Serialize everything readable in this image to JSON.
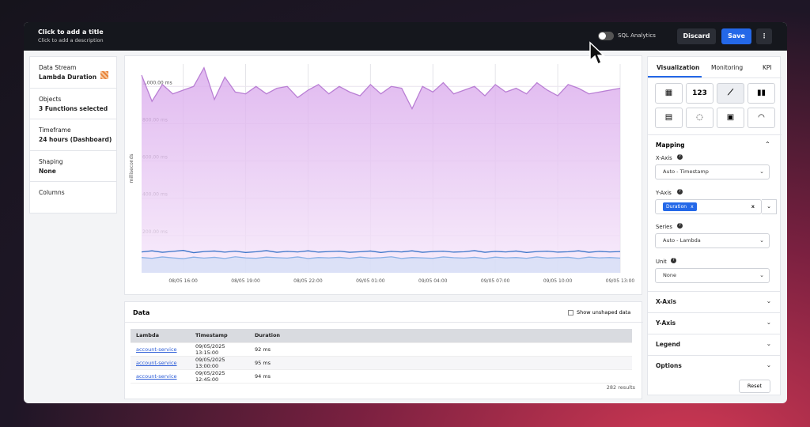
{
  "header": {
    "title": "Click to add a title",
    "description": "Click to add a description",
    "sql_toggle": "SQL Analytics",
    "discard": "Discard",
    "save": "Save"
  },
  "sidebar": {
    "items": [
      {
        "label": "Data Stream",
        "value": "Lambda Duration"
      },
      {
        "label": "Objects",
        "value": "3 Functions selected"
      },
      {
        "label": "Timeframe",
        "value": "24 hours (Dashboard)"
      },
      {
        "label": "Shaping",
        "value": "None"
      },
      {
        "label": "Columns"
      }
    ]
  },
  "chart_data": {
    "type": "line",
    "y_label": "milliseconds",
    "x": [
      "08/05 14:00",
      "08/05 14:30",
      "08/05 15:00",
      "08/05 15:30",
      "08/05 16:00",
      "08/05 16:30",
      "08/05 17:00",
      "08/05 17:30",
      "08/05 18:00",
      "08/05 18:30",
      "08/05 19:00",
      "08/05 19:30",
      "08/05 20:00",
      "08/05 20:30",
      "08/05 21:00",
      "08/05 21:30",
      "08/05 22:00",
      "08/05 22:30",
      "08/05 23:00",
      "08/05 23:30",
      "09/05 00:00",
      "09/05 00:30",
      "09/05 01:00",
      "09/05 01:30",
      "09/05 02:00",
      "09/05 02:30",
      "09/05 03:00",
      "09/05 03:30",
      "09/05 04:00",
      "09/05 04:30",
      "09/05 05:00",
      "09/05 05:30",
      "09/05 06:00",
      "09/05 06:30",
      "09/05 07:00",
      "09/05 07:30",
      "09/05 08:00",
      "09/05 08:30",
      "09/05 09:00",
      "09/05 09:30",
      "09/05 10:00",
      "09/05 10:30",
      "09/05 11:00",
      "09/05 11:30",
      "09/05 12:00",
      "09/05 12:30",
      "09/05 13:00"
    ],
    "xticks": [
      "08/05 16:00",
      "08/05 19:00",
      "08/05 22:00",
      "09/05 01:00",
      "09/05 04:00",
      "09/05 07:00",
      "09/05 10:00",
      "09/05 13:00"
    ],
    "ylim": [
      0,
      1120
    ],
    "yticks": [
      {
        "value": 200,
        "label": "200.00 ms"
      },
      {
        "value": 400,
        "label": "400.00 ms"
      },
      {
        "value": 600,
        "label": "600.00 ms"
      },
      {
        "value": 800,
        "label": "800.00 ms"
      },
      {
        "value": 1000,
        "label": "1,000.00 ms"
      }
    ],
    "series": [
      {
        "color": "#b97fd4",
        "values": [
          1060,
          920,
          1010,
          960,
          980,
          1000,
          1100,
          930,
          1050,
          970,
          960,
          1000,
          960,
          990,
          1000,
          940,
          980,
          1010,
          960,
          1000,
          970,
          950,
          1010,
          960,
          1000,
          990,
          880,
          1000,
          970,
          1020,
          960,
          980,
          1000,
          950,
          1010,
          970,
          990,
          960,
          1020,
          980,
          950,
          1010,
          990,
          960,
          970,
          980,
          990
        ]
      },
      {
        "color": "#3a74c8",
        "values": [
          112,
          118,
          110,
          115,
          120,
          108,
          114,
          117,
          111,
          116,
          109,
          113,
          119,
          110,
          115,
          112,
          118,
          111,
          114,
          116,
          110,
          113,
          117,
          109,
          115,
          112,
          118,
          110,
          114,
          116,
          111,
          113,
          119,
          110,
          115,
          112,
          117,
          109,
          114,
          116,
          111,
          113,
          118,
          110,
          115,
          112,
          114
        ]
      },
      {
        "color": "#8ab0e6",
        "values": [
          82,
          78,
          85,
          80,
          76,
          84,
          79,
          83,
          77,
          86,
          80,
          78,
          84,
          81,
          79,
          85,
          77,
          82,
          80,
          83,
          78,
          84,
          79,
          81,
          86,
          77,
          82,
          80,
          78,
          85,
          81,
          79,
          83,
          77,
          84,
          80,
          82,
          78,
          85,
          79,
          81,
          83,
          77,
          84,
          80,
          82,
          79
        ]
      }
    ]
  },
  "data_panel": {
    "title": "Data",
    "checkbox": "Show unshaped data",
    "columns": [
      "Lambda",
      "Timestamp",
      "Duration"
    ],
    "rows": [
      [
        "account-service",
        "09/05/2025 13:15:00",
        "92 ms"
      ],
      [
        "account-service",
        "09/05/2025 13:00:00",
        "95 ms"
      ],
      [
        "account-service",
        "09/05/2025 12:45:00",
        "94 ms"
      ]
    ],
    "results": "282 results"
  },
  "right_panel": {
    "tabs": [
      "Visualization",
      "Monitoring",
      "KPI"
    ],
    "number_icon": "123",
    "mapping_title": "Mapping",
    "fields": [
      {
        "label": "X-Axis",
        "value": "Auto - Timestamp"
      },
      {
        "label": "Y-Axis",
        "chip": "Duration",
        "chip_remove": "x",
        "clear": "x"
      },
      {
        "label": "Series",
        "value": "Auto - Lambda"
      },
      {
        "label": "Unit",
        "value": "None"
      }
    ],
    "sections": [
      "X-Axis",
      "Y-Axis",
      "Legend",
      "Options"
    ],
    "reset": "Reset"
  }
}
